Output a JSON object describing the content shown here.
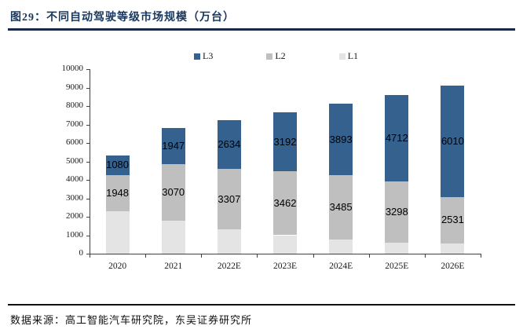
{
  "header": {
    "title": "图29：不同自动驾驶等级市场规模（万台）"
  },
  "footer": {
    "source": "数据来源：高工智能汽车研究院，东吴证券研究所"
  },
  "chart_data": {
    "type": "bar",
    "stacked": true,
    "title": "图29：不同自动驾驶等级市场规模（万台）",
    "categories": [
      "2020",
      "2021",
      "2022E",
      "2023E",
      "2024E",
      "2025E",
      "2026E"
    ],
    "series": [
      {
        "name": "L1",
        "color": "#E4E4E4",
        "labels_shown": false,
        "values": [
          2300,
          1800,
          1300,
          1000,
          750,
          600,
          550
        ]
      },
      {
        "name": "L2",
        "color": "#BFBFBF",
        "labels_shown": true,
        "values": [
          1948,
          3070,
          3307,
          3462,
          3485,
          3298,
          2531
        ]
      },
      {
        "name": "L3",
        "color": "#35618F",
        "labels_shown": true,
        "values": [
          1080,
          1947,
          2634,
          3192,
          3893,
          4712,
          6010
        ]
      }
    ],
    "legend_order": [
      "L3",
      "L2",
      "L1"
    ],
    "legend_position": "top",
    "xlabel": "",
    "ylabel": "",
    "ylim": [
      0,
      10000
    ],
    "yticks": [
      0,
      1000,
      2000,
      3000,
      4000,
      5000,
      6000,
      7000,
      8000,
      9000,
      10000
    ],
    "grid": false
  },
  "colors": {
    "title": "#17375E",
    "top_rule": "#1b2a44",
    "bottom_rule": "#111111",
    "axis": "#404040",
    "data_label": "#000000"
  }
}
